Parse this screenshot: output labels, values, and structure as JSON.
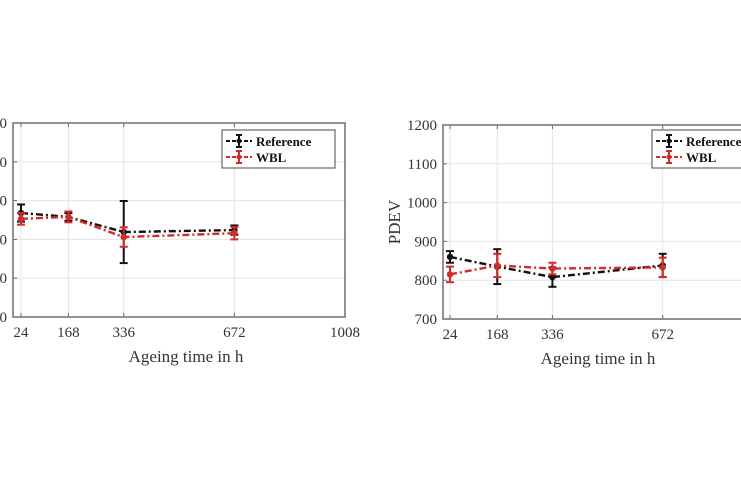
{
  "chart_data": [
    {
      "type": "line",
      "title": "",
      "xlabel": "Ageing time in h",
      "ylabel": "",
      "x": [
        24,
        168,
        336,
        672
      ],
      "x_ticks": [
        "24",
        "168",
        "336",
        "672",
        "1008"
      ],
      "x_tick_values": [
        24,
        168,
        336,
        672,
        1008
      ],
      "xlim": [
        24,
        1008
      ],
      "y_tick_labels_visible": [
        "0",
        "0",
        "0",
        "0",
        "0",
        "0"
      ],
      "ylim_relative": [
        0,
        5
      ],
      "note": "Left y-axis tick labels are cropped; values given on relative 0-5 gridline scale",
      "grid": true,
      "legend_position": "top-right",
      "series": [
        {
          "name": "Reference",
          "color": "#111111",
          "values": [
            2.68,
            2.58,
            2.19,
            2.24
          ],
          "errors": [
            0.22,
            0.1,
            0.8,
            0.12
          ]
        },
        {
          "name": "WBL",
          "color": "#d42a2a",
          "values": [
            2.53,
            2.58,
            2.06,
            2.16
          ],
          "errors": [
            0.15,
            0.14,
            0.25,
            0.16
          ]
        }
      ]
    },
    {
      "type": "line",
      "title": "",
      "xlabel": "Ageing time in h",
      "ylabel": "PDEV",
      "x": [
        24,
        168,
        336,
        672
      ],
      "x_ticks": [
        "24",
        "168",
        "336",
        "672"
      ],
      "x_tick_values": [
        24,
        168,
        336,
        672
      ],
      "xlim": [
        24,
        1008
      ],
      "y_ticks": [
        "700",
        "800",
        "900",
        "1000",
        "1100",
        "1200"
      ],
      "y_tick_values": [
        700,
        800,
        900,
        1000,
        1100,
        1200
      ],
      "ylim": [
        700,
        1200
      ],
      "grid": true,
      "legend_position": "top-right",
      "series": [
        {
          "name": "Reference",
          "color": "#111111",
          "values": [
            860,
            835,
            808,
            838
          ],
          "errors": [
            15,
            45,
            25,
            30
          ]
        },
        {
          "name": "WBL",
          "color": "#d42a2a",
          "values": [
            815,
            838,
            830,
            833
          ],
          "errors": [
            20,
            30,
            15,
            25
          ]
        }
      ]
    }
  ]
}
